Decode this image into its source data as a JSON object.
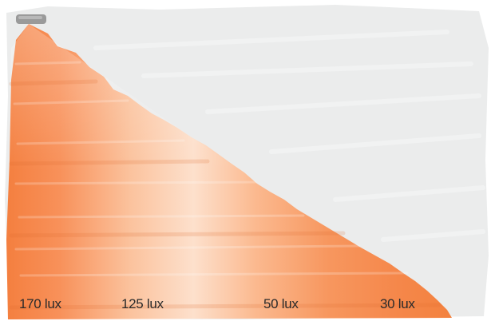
{
  "colors": {
    "background_wash": "#ebecec",
    "light_strong": "#f5874a",
    "light_soft": "#fde3cf",
    "lamp": "#9a9a9a"
  },
  "icons": {
    "light_source": "lamp-icon"
  },
  "illuminance_labels": [
    {
      "text": "170 lux"
    },
    {
      "text": "125 lux"
    },
    {
      "text": "50 lux"
    },
    {
      "text": "30 lux"
    }
  ]
}
